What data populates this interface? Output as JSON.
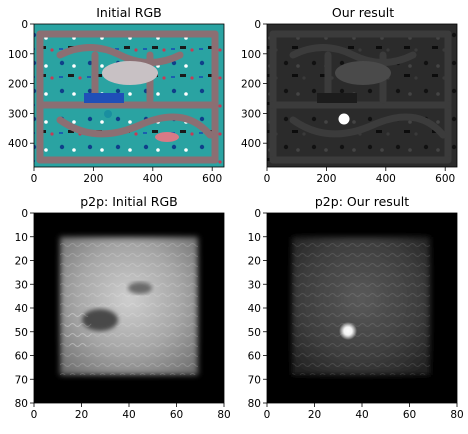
{
  "figure": {
    "panels": [
      {
        "title": "Initial RGB",
        "x_ticks": [
          "0",
          "200",
          "400",
          "600"
        ],
        "y_ticks": [
          "0",
          "100",
          "200",
          "300",
          "400"
        ],
        "x_range": [
          0,
          640
        ],
        "y_range": [
          0,
          480
        ]
      },
      {
        "title": "Our result",
        "x_ticks": [
          "0",
          "200",
          "400",
          "600"
        ],
        "y_ticks": [
          "0",
          "100",
          "200",
          "300",
          "400"
        ],
        "x_range": [
          0,
          640
        ],
        "y_range": [
          0,
          480
        ]
      },
      {
        "title": "p2p: Initial RGB",
        "x_ticks": [
          "0",
          "20",
          "40",
          "60",
          "80"
        ],
        "y_ticks": [
          "0",
          "10",
          "20",
          "30",
          "40",
          "50",
          "60",
          "70",
          "80"
        ],
        "x_range": [
          0,
          80
        ],
        "y_range": [
          0,
          80
        ]
      },
      {
        "title": "p2p: Our result",
        "x_ticks": [
          "0",
          "20",
          "40",
          "60",
          "80"
        ],
        "y_ticks": [
          "0",
          "10",
          "20",
          "30",
          "40",
          "50",
          "60",
          "70",
          "80"
        ],
        "x_range": [
          0,
          80
        ],
        "y_range": [
          0,
          80
        ]
      }
    ]
  },
  "colors": {
    "toy_mat_teal": "#2aa3a2",
    "road_gray": "#8b6f73",
    "dark_result": "#2a2a2a",
    "bright_spot": "#ffffff"
  }
}
